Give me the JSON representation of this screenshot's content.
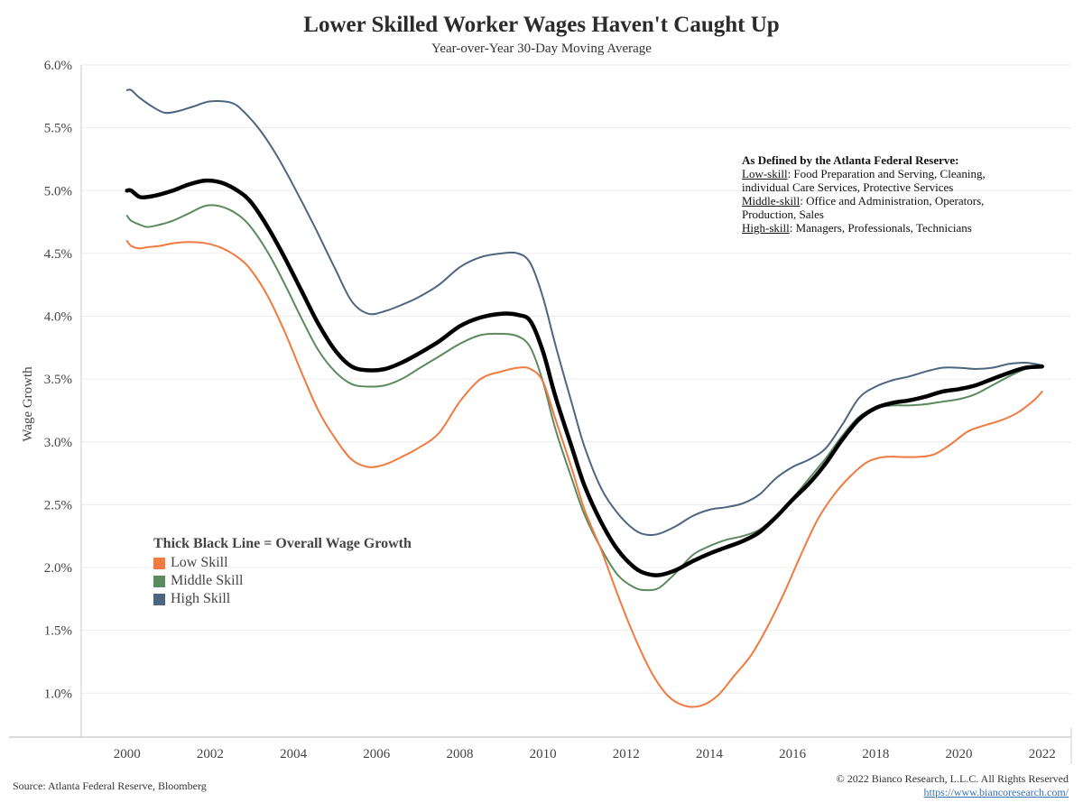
{
  "title": "Lower Skilled Worker Wages Haven't Caught Up",
  "subtitle": "Year-over-Year 30-Day Moving Average",
  "note": {
    "title": "As Defined by the Atlanta Federal Reserve:",
    "lines": [
      {
        "term": "Low-skill",
        "text": ": Food Preparation and Serving, Cleaning,"
      },
      {
        "term": "",
        "text": "individual Care Services, Protective Services"
      },
      {
        "term": "Middle-skill",
        "text": ": Office and Administration, Operators,"
      },
      {
        "term": "",
        "text": "Production, Sales"
      },
      {
        "term": "High-skill",
        "text": ": Managers, Professionals, Technicians"
      }
    ]
  },
  "legend": {
    "title": "Thick Black Line = Overall Wage Growth",
    "items": [
      {
        "label": "Low Skill",
        "color": "#f07a3f"
      },
      {
        "label": "Middle Skill",
        "color": "#5a8a5e"
      },
      {
        "label": "High Skill",
        "color": "#4e6580"
      }
    ]
  },
  "footer": {
    "source": "Source: Atlanta Federal Reserve, Bloomberg",
    "copyright": "© 2022 Bianco Research, L.L.C. All Rights Reserved",
    "url": "https://www.biancoresearch.com/"
  },
  "chart_data": {
    "type": "line",
    "title": "Lower Skilled Worker Wages Haven't Caught Up",
    "subtitle": "Year-over-Year 30-Day Moving Average",
    "xlabel": "",
    "ylabel": "Wage Growth",
    "xlim": [
      1998.9,
      2022.7
    ],
    "ylim": [
      0.65,
      6.0
    ],
    "x_ticks": [
      2000,
      2002,
      2004,
      2006,
      2008,
      2010,
      2012,
      2014,
      2016,
      2018,
      2020,
      2022
    ],
    "y_ticks": [
      1.0,
      1.5,
      2.0,
      2.5,
      3.0,
      3.5,
      4.0,
      4.5,
      5.0,
      5.5,
      6.0
    ],
    "y_tick_labels": [
      "1.0%",
      "1.5%",
      "2.0%",
      "2.5%",
      "3.0%",
      "3.5%",
      "4.0%",
      "4.5%",
      "5.0%",
      "5.5%",
      "6.0%"
    ],
    "grid": "horizontal",
    "series": [
      {
        "name": "High Skill",
        "color": "#4e6580",
        "width": 2,
        "points": [
          [
            2000.0,
            5.8
          ],
          [
            2000.1,
            5.8
          ],
          [
            2000.3,
            5.74
          ],
          [
            2000.6,
            5.67
          ],
          [
            2000.9,
            5.62
          ],
          [
            2001.2,
            5.63
          ],
          [
            2001.6,
            5.67
          ],
          [
            2002.0,
            5.71
          ],
          [
            2002.5,
            5.7
          ],
          [
            2002.8,
            5.63
          ],
          [
            2003.2,
            5.48
          ],
          [
            2003.6,
            5.28
          ],
          [
            2004.0,
            5.04
          ],
          [
            2004.5,
            4.72
          ],
          [
            2005.0,
            4.38
          ],
          [
            2005.4,
            4.12
          ],
          [
            2005.8,
            4.02
          ],
          [
            2006.2,
            4.04
          ],
          [
            2006.6,
            4.09
          ],
          [
            2007.0,
            4.15
          ],
          [
            2007.5,
            4.25
          ],
          [
            2008.0,
            4.39
          ],
          [
            2008.5,
            4.47
          ],
          [
            2009.0,
            4.5
          ],
          [
            2009.4,
            4.5
          ],
          [
            2009.7,
            4.42
          ],
          [
            2010.0,
            4.15
          ],
          [
            2010.3,
            3.77
          ],
          [
            2010.7,
            3.3
          ],
          [
            2011.0,
            2.96
          ],
          [
            2011.4,
            2.63
          ],
          [
            2011.8,
            2.43
          ],
          [
            2012.2,
            2.3
          ],
          [
            2012.5,
            2.26
          ],
          [
            2012.8,
            2.27
          ],
          [
            2013.2,
            2.33
          ],
          [
            2013.6,
            2.41
          ],
          [
            2014.0,
            2.46
          ],
          [
            2014.4,
            2.48
          ],
          [
            2014.8,
            2.51
          ],
          [
            2015.2,
            2.58
          ],
          [
            2015.6,
            2.71
          ],
          [
            2016.0,
            2.8
          ],
          [
            2016.4,
            2.86
          ],
          [
            2016.8,
            2.95
          ],
          [
            2017.2,
            3.14
          ],
          [
            2017.6,
            3.35
          ],
          [
            2018.0,
            3.44
          ],
          [
            2018.4,
            3.49
          ],
          [
            2018.8,
            3.52
          ],
          [
            2019.2,
            3.56
          ],
          [
            2019.6,
            3.59
          ],
          [
            2020.0,
            3.59
          ],
          [
            2020.4,
            3.58
          ],
          [
            2020.8,
            3.59
          ],
          [
            2021.2,
            3.62
          ],
          [
            2021.6,
            3.63
          ],
          [
            2022.0,
            3.61
          ]
        ]
      },
      {
        "name": "Middle Skill",
        "color": "#5a8a5e",
        "width": 2,
        "points": [
          [
            2000.0,
            4.8
          ],
          [
            2000.1,
            4.76
          ],
          [
            2000.3,
            4.73
          ],
          [
            2000.5,
            4.71
          ],
          [
            2000.8,
            4.73
          ],
          [
            2001.1,
            4.76
          ],
          [
            2001.5,
            4.82
          ],
          [
            2001.9,
            4.88
          ],
          [
            2002.3,
            4.87
          ],
          [
            2002.7,
            4.8
          ],
          [
            2003.0,
            4.7
          ],
          [
            2003.4,
            4.5
          ],
          [
            2003.8,
            4.25
          ],
          [
            2004.2,
            3.98
          ],
          [
            2004.6,
            3.73
          ],
          [
            2005.0,
            3.56
          ],
          [
            2005.4,
            3.46
          ],
          [
            2005.8,
            3.44
          ],
          [
            2006.2,
            3.45
          ],
          [
            2006.6,
            3.5
          ],
          [
            2007.0,
            3.58
          ],
          [
            2007.5,
            3.68
          ],
          [
            2008.0,
            3.78
          ],
          [
            2008.5,
            3.85
          ],
          [
            2009.0,
            3.86
          ],
          [
            2009.4,
            3.84
          ],
          [
            2009.7,
            3.75
          ],
          [
            2010.0,
            3.48
          ],
          [
            2010.3,
            3.1
          ],
          [
            2010.7,
            2.7
          ],
          [
            2011.0,
            2.42
          ],
          [
            2011.4,
            2.15
          ],
          [
            2011.8,
            1.94
          ],
          [
            2012.2,
            1.84
          ],
          [
            2012.5,
            1.82
          ],
          [
            2012.8,
            1.84
          ],
          [
            2013.2,
            1.96
          ],
          [
            2013.6,
            2.1
          ],
          [
            2014.0,
            2.17
          ],
          [
            2014.4,
            2.22
          ],
          [
            2014.8,
            2.25
          ],
          [
            2015.2,
            2.3
          ],
          [
            2015.6,
            2.41
          ],
          [
            2016.0,
            2.55
          ],
          [
            2016.4,
            2.71
          ],
          [
            2016.8,
            2.87
          ],
          [
            2017.2,
            3.05
          ],
          [
            2017.6,
            3.2
          ],
          [
            2018.0,
            3.27
          ],
          [
            2018.4,
            3.29
          ],
          [
            2018.8,
            3.29
          ],
          [
            2019.2,
            3.3
          ],
          [
            2019.6,
            3.32
          ],
          [
            2020.0,
            3.34
          ],
          [
            2020.4,
            3.38
          ],
          [
            2020.8,
            3.45
          ],
          [
            2021.2,
            3.52
          ],
          [
            2021.6,
            3.58
          ],
          [
            2022.0,
            3.6
          ]
        ]
      },
      {
        "name": "Low Skill",
        "color": "#f07a3f",
        "width": 2,
        "points": [
          [
            2000.0,
            4.6
          ],
          [
            2000.1,
            4.56
          ],
          [
            2000.3,
            4.54
          ],
          [
            2000.5,
            4.55
          ],
          [
            2000.8,
            4.56
          ],
          [
            2001.1,
            4.58
          ],
          [
            2001.5,
            4.59
          ],
          [
            2001.9,
            4.58
          ],
          [
            2002.3,
            4.54
          ],
          [
            2002.7,
            4.46
          ],
          [
            2003.0,
            4.36
          ],
          [
            2003.4,
            4.15
          ],
          [
            2003.8,
            3.87
          ],
          [
            2004.2,
            3.55
          ],
          [
            2004.6,
            3.25
          ],
          [
            2005.0,
            3.03
          ],
          [
            2005.4,
            2.86
          ],
          [
            2005.8,
            2.8
          ],
          [
            2006.2,
            2.82
          ],
          [
            2006.6,
            2.88
          ],
          [
            2007.0,
            2.95
          ],
          [
            2007.5,
            3.07
          ],
          [
            2008.0,
            3.32
          ],
          [
            2008.5,
            3.5
          ],
          [
            2009.0,
            3.56
          ],
          [
            2009.4,
            3.59
          ],
          [
            2009.7,
            3.58
          ],
          [
            2010.0,
            3.48
          ],
          [
            2010.3,
            3.18
          ],
          [
            2010.7,
            2.78
          ],
          [
            2011.0,
            2.46
          ],
          [
            2011.4,
            2.14
          ],
          [
            2011.8,
            1.78
          ],
          [
            2012.2,
            1.45
          ],
          [
            2012.6,
            1.17
          ],
          [
            2013.0,
            0.98
          ],
          [
            2013.4,
            0.9
          ],
          [
            2013.8,
            0.9
          ],
          [
            2014.2,
            0.98
          ],
          [
            2014.6,
            1.14
          ],
          [
            2015.0,
            1.3
          ],
          [
            2015.4,
            1.53
          ],
          [
            2015.8,
            1.8
          ],
          [
            2016.2,
            2.1
          ],
          [
            2016.6,
            2.38
          ],
          [
            2017.0,
            2.58
          ],
          [
            2017.4,
            2.73
          ],
          [
            2017.8,
            2.84
          ],
          [
            2018.2,
            2.88
          ],
          [
            2018.6,
            2.88
          ],
          [
            2019.0,
            2.88
          ],
          [
            2019.4,
            2.9
          ],
          [
            2019.8,
            2.98
          ],
          [
            2020.2,
            3.08
          ],
          [
            2020.6,
            3.13
          ],
          [
            2021.0,
            3.17
          ],
          [
            2021.4,
            3.23
          ],
          [
            2021.8,
            3.33
          ],
          [
            2022.0,
            3.4
          ]
        ]
      },
      {
        "name": "Overall",
        "color": "#000000",
        "width": 4.5,
        "points": [
          [
            2000.0,
            5.0
          ],
          [
            2000.1,
            5.0
          ],
          [
            2000.3,
            4.95
          ],
          [
            2000.5,
            4.95
          ],
          [
            2000.8,
            4.97
          ],
          [
            2001.1,
            5.0
          ],
          [
            2001.5,
            5.05
          ],
          [
            2001.9,
            5.08
          ],
          [
            2002.3,
            5.06
          ],
          [
            2002.7,
            4.99
          ],
          [
            2003.0,
            4.9
          ],
          [
            2003.4,
            4.7
          ],
          [
            2003.8,
            4.46
          ],
          [
            2004.2,
            4.2
          ],
          [
            2004.6,
            3.94
          ],
          [
            2005.0,
            3.73
          ],
          [
            2005.4,
            3.6
          ],
          [
            2005.8,
            3.57
          ],
          [
            2006.2,
            3.58
          ],
          [
            2006.6,
            3.63
          ],
          [
            2007.0,
            3.7
          ],
          [
            2007.5,
            3.8
          ],
          [
            2008.0,
            3.92
          ],
          [
            2008.5,
            3.99
          ],
          [
            2009.0,
            4.02
          ],
          [
            2009.4,
            4.01
          ],
          [
            2009.7,
            3.96
          ],
          [
            2010.0,
            3.72
          ],
          [
            2010.3,
            3.36
          ],
          [
            2010.7,
            2.95
          ],
          [
            2011.0,
            2.65
          ],
          [
            2011.4,
            2.36
          ],
          [
            2011.8,
            2.14
          ],
          [
            2012.2,
            2.0
          ],
          [
            2012.5,
            1.95
          ],
          [
            2012.8,
            1.94
          ],
          [
            2013.2,
            1.98
          ],
          [
            2013.6,
            2.05
          ],
          [
            2014.0,
            2.11
          ],
          [
            2014.4,
            2.16
          ],
          [
            2014.8,
            2.21
          ],
          [
            2015.2,
            2.28
          ],
          [
            2015.6,
            2.4
          ],
          [
            2016.0,
            2.54
          ],
          [
            2016.4,
            2.67
          ],
          [
            2016.8,
            2.83
          ],
          [
            2017.2,
            3.02
          ],
          [
            2017.6,
            3.18
          ],
          [
            2018.0,
            3.27
          ],
          [
            2018.4,
            3.31
          ],
          [
            2018.8,
            3.33
          ],
          [
            2019.2,
            3.36
          ],
          [
            2019.6,
            3.4
          ],
          [
            2020.0,
            3.42
          ],
          [
            2020.4,
            3.45
          ],
          [
            2020.8,
            3.5
          ],
          [
            2021.2,
            3.55
          ],
          [
            2021.6,
            3.59
          ],
          [
            2022.0,
            3.6
          ]
        ]
      }
    ]
  }
}
